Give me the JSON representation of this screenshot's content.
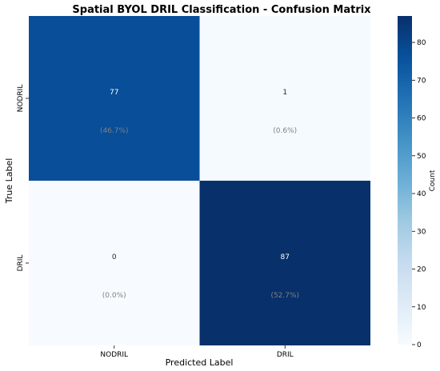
{
  "chart_data": {
    "type": "heatmap",
    "title": "Spatial BYOL DRIL Classification - Confusion Matrix",
    "xlabel": "Predicted Label",
    "ylabel": "True Label",
    "x_categories": [
      "NODRIL",
      "DRIL"
    ],
    "y_categories": [
      "NODRIL",
      "DRIL"
    ],
    "values": [
      [
        77,
        1
      ],
      [
        0,
        87
      ]
    ],
    "percent_labels": [
      [
        "(46.7%)",
        "(0.6%)"
      ],
      [
        "(0.0%)",
        "(52.7%)"
      ]
    ],
    "colormap": "Blues",
    "colorbar": {
      "label": "Count",
      "range": [
        0,
        87
      ],
      "ticks": [
        0,
        10,
        20,
        30,
        40,
        50,
        60,
        70,
        80
      ]
    },
    "colors": {
      "low": "#f7fbff",
      "high": "#08306b",
      "text_dark_bg": "#ffffff",
      "text_light_bg": "#262626",
      "percent_text": "#808080"
    }
  }
}
